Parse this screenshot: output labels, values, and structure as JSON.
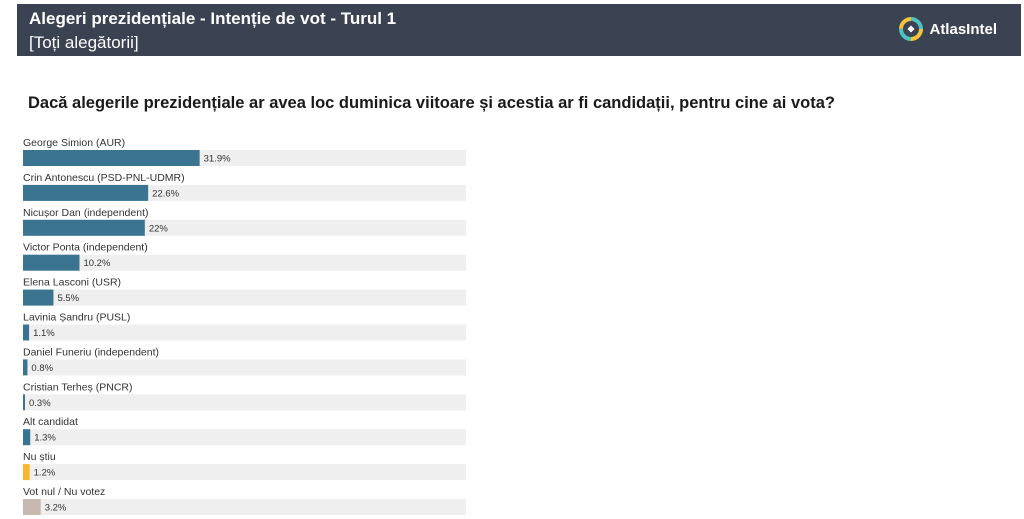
{
  "header": {
    "title": "Alegeri prezidențiale - Intenție de vot - Turul 1",
    "subtitle": "[Toți alegătorii]",
    "brand": "AtlasIntel"
  },
  "chart_data": {
    "type": "bar",
    "title": "Dacă alegerile prezidențiale ar avea loc duminica viitoare și acestia ar fi candidații, pentru cine ai vota?",
    "categories": [
      "George Simion (AUR)",
      "Crin Antonescu (PSD-PNL-UDMR)",
      "Nicușor Dan (independent)",
      "Victor Ponta (independent)",
      "Elena Lasconi (USR)",
      "Lavinia Șandru (PUSL)",
      "Daniel Funeriu (independent)",
      "Cristian Terheș (PNCR)",
      "Alt candidat",
      "Nu știu",
      "Vot nul / Nu votez"
    ],
    "values": [
      31.9,
      22.6,
      22,
      10.2,
      5.5,
      1.1,
      0.8,
      0.3,
      1.3,
      1.2,
      3.2
    ],
    "value_labels": [
      "31.9%",
      "22.6%",
      "22%",
      "10.2%",
      "5.5%",
      "1.1%",
      "0.8%",
      "0.3%",
      "1.3%",
      "1.2%",
      "3.2%"
    ],
    "colors": [
      "#3b7490",
      "#3b7490",
      "#3b7490",
      "#3b7490",
      "#3b7490",
      "#3b7490",
      "#3b7490",
      "#3b7490",
      "#3b7490",
      "#f5b731",
      "#c8b9b0"
    ],
    "track_color": "#efefef",
    "orientation": "horizontal",
    "xlim": [
      0,
      80
    ]
  }
}
